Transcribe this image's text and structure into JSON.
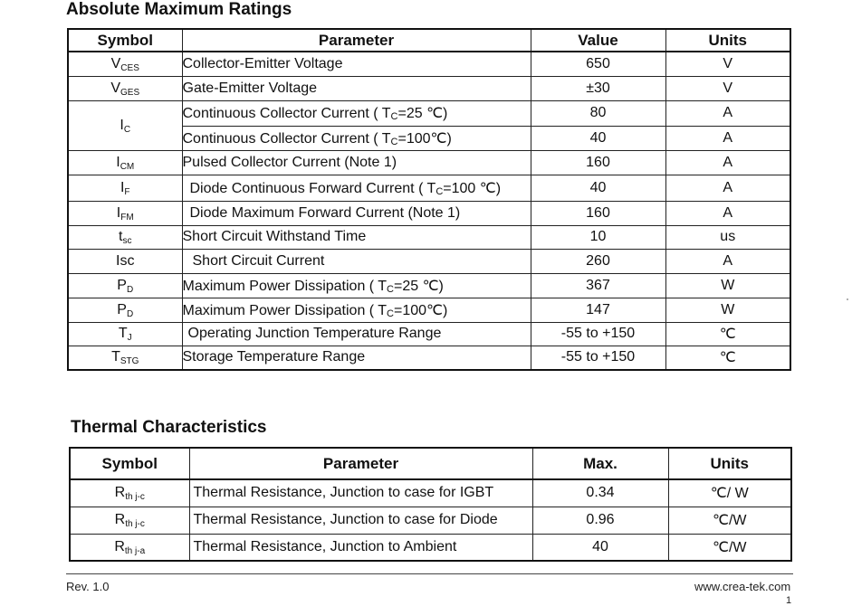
{
  "abs_max": {
    "title": "Absolute Maximum Ratings",
    "headers": {
      "symbol": "Symbol",
      "parameter": "Parameter",
      "value": "Value",
      "units": "Units"
    },
    "rows": [
      {
        "sym_main": "V",
        "sym_sub": "CES",
        "param_a": "Collector-Emitter Voltage",
        "param_sub": "",
        "param_b": "",
        "value": "650",
        "unit": "V"
      },
      {
        "sym_main": "V",
        "sym_sub": "GES",
        "param_a": "Gate-Emitter Voltage",
        "param_sub": "",
        "param_b": "",
        "value": "±30",
        "unit": "V"
      },
      {
        "sym_main": "I",
        "sym_sub": "C",
        "param_a": "Continuous Collector Current ( T",
        "param_sub": "C",
        "param_b": "=25 ℃)",
        "value": "80",
        "unit": "A"
      },
      {
        "param_a": "Continuous Collector Current  ( T",
        "param_sub": "C",
        "param_b": "=100℃)",
        "value": "40",
        "unit": "A"
      },
      {
        "sym_main": "I",
        "sym_sub": "CM",
        "param_a": "Pulsed Collector Current (Note 1)",
        "param_sub": "",
        "param_b": "",
        "value": "160",
        "unit": "A"
      },
      {
        "sym_main": "I",
        "sym_sub": "F",
        "param_a": "Diode Continuous Forward Current ( T",
        "param_sub": "C",
        "param_b": "=100 ℃)",
        "value": "40",
        "unit": "A"
      },
      {
        "sym_main": "I",
        "sym_sub": "FM",
        "param_a": "Diode Maximum Forward Current (Note 1)",
        "param_sub": "",
        "param_b": "",
        "value": "160",
        "unit": "A"
      },
      {
        "sym_main": "t",
        "sym_sub": "sc",
        "param_a": "Short Circuit Withstand Time",
        "param_sub": "",
        "param_b": "",
        "value": "10",
        "unit": "us"
      },
      {
        "sym_main": "Isc",
        "sym_sub": "",
        "param_a": "Short Circuit Current",
        "param_sub": "",
        "param_b": "",
        "value": "260",
        "unit": "A"
      },
      {
        "sym_main": "P",
        "sym_sub": "D",
        "param_a": "Maximum Power Dissipation ( T",
        "param_sub": "C",
        "param_b": "=25 ℃)",
        "value": "367",
        "unit": "W"
      },
      {
        "sym_main": "P",
        "sym_sub": "D",
        "param_a": "Maximum Power Dissipation ( T",
        "param_sub": "C",
        "param_b": "=100℃)",
        "value": "147",
        "unit": "W"
      },
      {
        "sym_main": "T",
        "sym_sub": "J",
        "param_a": "Operating Junction Temperature Range",
        "param_sub": "",
        "param_b": "",
        "value": "-55 to +150",
        "unit": "℃"
      },
      {
        "sym_main": "T",
        "sym_sub": "STG",
        "param_a": "Storage Temperature Range",
        "param_sub": "",
        "param_b": "",
        "value": "-55 to +150",
        "unit": "℃"
      }
    ]
  },
  "thermal": {
    "title": "Thermal Characteristics",
    "headers": {
      "symbol": "Symbol",
      "parameter": "Parameter",
      "max": "Max.",
      "units": "Units"
    },
    "rows": [
      {
        "sym_main": "R",
        "sym_sub": "th j-c",
        "param": "Thermal Resistance, Junction to case for IGBT",
        "max": "0.34",
        "unit": "℃/ W"
      },
      {
        "sym_main": "R",
        "sym_sub": "th j-c",
        "param": "Thermal Resistance, Junction to case for Diode",
        "max": "0.96",
        "unit": "℃/W"
      },
      {
        "sym_main": "R",
        "sym_sub": "th j-a",
        "param": "Thermal Resistance, Junction to Ambient",
        "max": "40",
        "unit": "℃/W"
      }
    ]
  },
  "footer": {
    "revision": "Rev. 1.0",
    "website": "www.crea-tek.com",
    "page_number": "1"
  }
}
